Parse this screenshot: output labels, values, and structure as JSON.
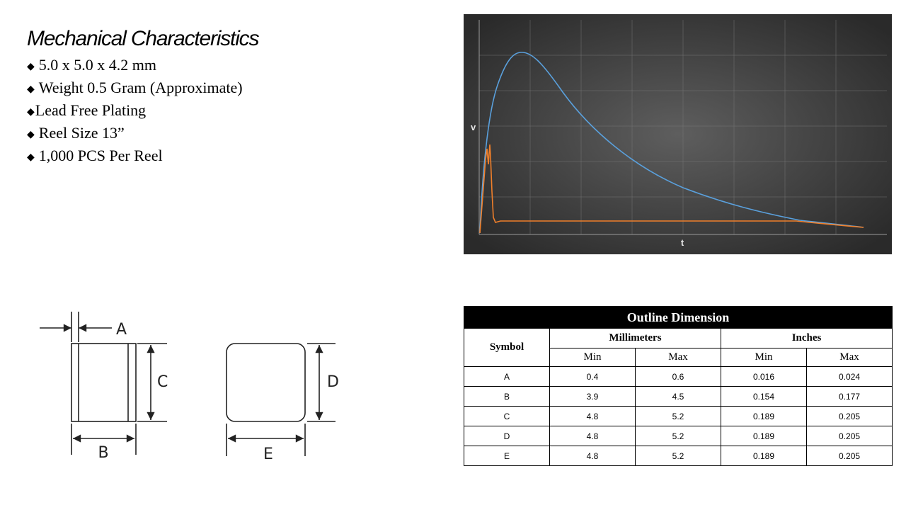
{
  "title": "Mechanical Characteristics",
  "bullet_glyph": "◆",
  "specs": [
    "5.0 x 5.0 x 4.2 mm",
    "Weight 0.5 Gram (Approximate)",
    "Lead Free Plating",
    "Reel Size 13”",
    "1,000 PCS Per Reel"
  ],
  "chart_data": {
    "type": "line",
    "xlabel": "t",
    "ylabel": "v",
    "grid": true,
    "background": "#4a4a4a",
    "series": [
      {
        "color": "#5aa0dc"
      },
      {
        "color": "#f07f2a"
      }
    ]
  },
  "drawing": {
    "labels": {
      "a": "A",
      "b": "B",
      "c": "C",
      "d": "D",
      "e": "E"
    }
  },
  "table": {
    "caption": "Outline Dimension",
    "symbol_header": "Symbol",
    "group_headers": [
      "Millimeters",
      "Inches"
    ],
    "sub_headers": [
      "Min",
      "Max",
      "Min",
      "Max"
    ],
    "rows": [
      [
        "A",
        "0.4",
        "0.6",
        "0.016",
        "0.024"
      ],
      [
        "B",
        "3.9",
        "4.5",
        "0.154",
        "0.177"
      ],
      [
        "C",
        "4.8",
        "5.2",
        "0.189",
        "0.205"
      ],
      [
        "D",
        "4.8",
        "5.2",
        "0.189",
        "0.205"
      ],
      [
        "E",
        "4.8",
        "5.2",
        "0.189",
        "0.205"
      ]
    ]
  }
}
